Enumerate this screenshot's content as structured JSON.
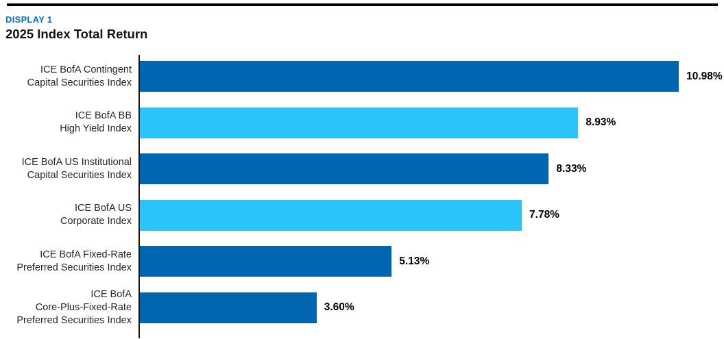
{
  "header": {
    "display_label": "DISPLAY 1",
    "title": "2025 Index Total Return"
  },
  "colors": {
    "accent_blue": "#0072CE",
    "bar_dark_blue": "#0066B2",
    "bar_light_blue": "#2BC4F9",
    "axis_black": "#161616",
    "rule_black": "#000000"
  },
  "chart_data": {
    "type": "bar",
    "orientation": "horizontal",
    "title": "2025 Index Total Return",
    "xlabel": "",
    "ylabel": "",
    "xlim": [
      0,
      11.9
    ],
    "grid": false,
    "legend": false,
    "categories": [
      "ICE BofA Contingent\nCapital Securities Index",
      "ICE BofA BB\nHigh Yield Index",
      "ICE BofA US Institutional\nCapital Securities Index",
      "ICE BofA US\nCorporate Index",
      "ICE BofA Fixed-Rate\nPreferred Securities Index",
      "ICE BofA\nCore-Plus-Fixed-Rate\nPreferred Securities Index"
    ],
    "values": [
      10.98,
      8.93,
      8.33,
      7.78,
      5.13,
      3.6
    ],
    "value_labels": [
      "10.98%",
      "8.93%",
      "8.33%",
      "7.78%",
      "5.13%",
      "3.60%"
    ],
    "bar_colors": [
      "#0066B2",
      "#2BC4F9",
      "#0066B2",
      "#2BC4F9",
      "#0066B2",
      "#0066B2"
    ]
  }
}
